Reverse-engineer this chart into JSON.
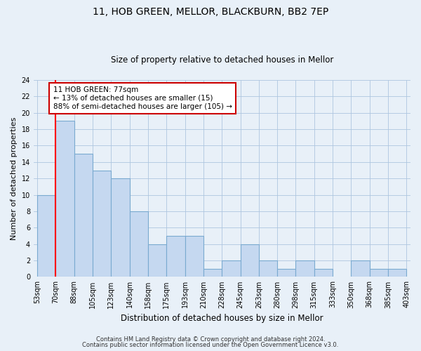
{
  "title_line1": "11, HOB GREEN, MELLOR, BLACKBURN, BB2 7EP",
  "title_line2": "Size of property relative to detached houses in Mellor",
  "xlabel": "Distribution of detached houses by size in Mellor",
  "ylabel": "Number of detached properties",
  "bin_labels": [
    "53sqm",
    "70sqm",
    "88sqm",
    "105sqm",
    "123sqm",
    "140sqm",
    "158sqm",
    "175sqm",
    "193sqm",
    "210sqm",
    "228sqm",
    "245sqm",
    "263sqm",
    "280sqm",
    "298sqm",
    "315sqm",
    "333sqm",
    "350sqm",
    "368sqm",
    "385sqm",
    "403sqm"
  ],
  "bar_heights": [
    10,
    19,
    15,
    13,
    12,
    8,
    4,
    5,
    5,
    1,
    2,
    4,
    2,
    1,
    2,
    1,
    0,
    2,
    1,
    1,
    0
  ],
  "bar_color": "#c5d8f0",
  "bar_edge_color": "#7aaad0",
  "red_line_x": 1.0,
  "annotation_text": "11 HOB GREEN: 77sqm\n← 13% of detached houses are smaller (15)\n88% of semi-detached houses are larger (105) →",
  "annotation_box_facecolor": "white",
  "annotation_box_edgecolor": "#cc0000",
  "ylim": [
    0,
    24
  ],
  "yticks": [
    0,
    2,
    4,
    6,
    8,
    10,
    12,
    14,
    16,
    18,
    20,
    22,
    24
  ],
  "footer_line1": "Contains HM Land Registry data © Crown copyright and database right 2024.",
  "footer_line2": "Contains public sector information licensed under the Open Government Licence v3.0.",
  "grid_color": "#aec6e0",
  "background_color": "#e8f0f8",
  "title1_fontsize": 10,
  "title2_fontsize": 8.5,
  "xlabel_fontsize": 8.5,
  "ylabel_fontsize": 8,
  "tick_fontsize": 7,
  "annotation_fontsize": 7.5,
  "footer_fontsize": 6
}
